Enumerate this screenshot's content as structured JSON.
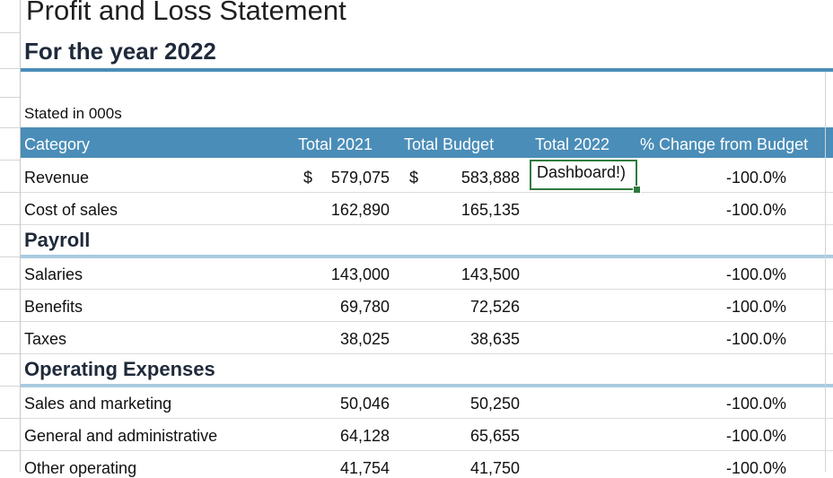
{
  "sheet": {
    "title": "Profit and Loss Statement",
    "subtitle": "For the year 2022",
    "stated_in": "Stated in 000s",
    "headers": {
      "category": "Category",
      "total_2021": "Total 2021",
      "total_budget": "Total Budget",
      "total_2022": "Total 2022",
      "pct_change": "% Change from Budget"
    },
    "active_cell_text": "Dashboard!)",
    "rows": {
      "revenue": {
        "label": "Revenue",
        "currency_2021": "$",
        "total_2021": "579,075",
        "currency_budget": "$",
        "total_budget": "583,888",
        "pct": "-100.0%"
      },
      "cost_of_sales": {
        "label": "Cost of sales",
        "total_2021": "162,890",
        "total_budget": "165,135",
        "pct": "-100.0%"
      },
      "salaries": {
        "label": "Salaries",
        "total_2021": "143,000",
        "total_budget": "143,500",
        "pct": "-100.0%"
      },
      "benefits": {
        "label": "Benefits",
        "total_2021": "69,780",
        "total_budget": "72,526",
        "pct": "-100.0%"
      },
      "taxes": {
        "label": "Taxes",
        "total_2021": "38,025",
        "total_budget": "38,635",
        "pct": "-100.0%"
      },
      "sales_marketing": {
        "label": "Sales and marketing",
        "total_2021": "50,046",
        "total_budget": "50,250",
        "pct": "-100.0%"
      },
      "general_admin": {
        "label": "General and administrative",
        "total_2021": "64,128",
        "total_budget": "65,655",
        "pct": "-100.0%"
      },
      "other_operating": {
        "label": "Other operating",
        "total_2021": "41,754",
        "total_budget": "41,750",
        "pct": "-100.0%"
      }
    },
    "sections": {
      "payroll": "Payroll",
      "operating_expenses": "Operating Expenses"
    },
    "colors": {
      "header_bg": "#4a8db8",
      "section_bar": "#a9cbe0",
      "active_cell_border": "#2f7a3e"
    }
  }
}
